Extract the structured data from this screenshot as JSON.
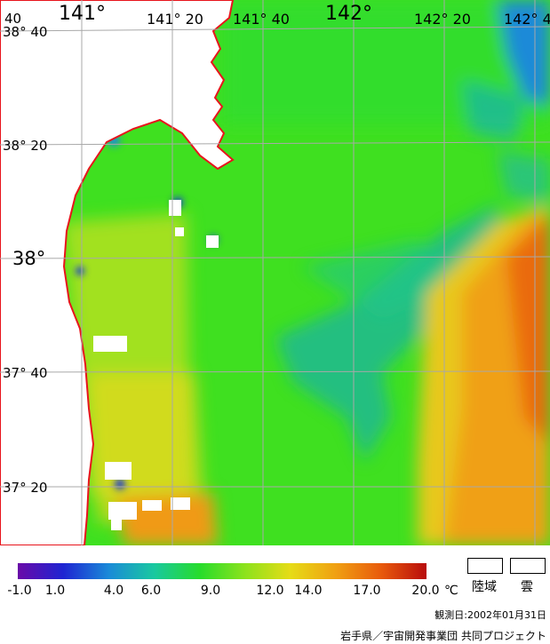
{
  "map": {
    "longitude_labels": [
      {
        "text": "141°",
        "style": "big"
      },
      {
        "text": "141° 20",
        "style": "small"
      },
      {
        "text": "141° 40",
        "style": "small"
      },
      {
        "text": "142°",
        "style": "big"
      },
      {
        "text": "142° 20",
        "style": "small"
      },
      {
        "text": "142° 4",
        "style": "small"
      }
    ],
    "corner_label": "40",
    "latitude_labels": [
      {
        "text": "38° 40",
        "style": "small"
      },
      {
        "text": "38° 20",
        "style": "small"
      },
      {
        "text": "38°",
        "style": "big"
      },
      {
        "text": "37° 40",
        "style": "small"
      },
      {
        "text": "37° 20",
        "style": "small"
      }
    ],
    "colors": {
      "land": "#ffffff",
      "coastline": "#e8141c",
      "grid": "#a8a8a8",
      "ocean_base": "#3fe020"
    }
  },
  "scale": {
    "stops": [
      "#6a0aa8",
      "#1e24d2",
      "#1a8ad8",
      "#19c8a0",
      "#26dc2c",
      "#8ce21c",
      "#e6dc16",
      "#f0a012",
      "#e85a0c",
      "#b80c0c"
    ],
    "ticks": [
      "-1.0",
      "1.0",
      "4.0",
      "6.0",
      "9.0",
      "12.0",
      "14.0",
      "17.0",
      "20.0"
    ],
    "unit": "℃"
  },
  "legend": {
    "land_label": "陸域",
    "cloud_label": "雲"
  },
  "footer": {
    "observation_date": "観測日:2002年01月31日",
    "credit": "岩手県／宇宙開発事業団 共同プロジェクト"
  }
}
